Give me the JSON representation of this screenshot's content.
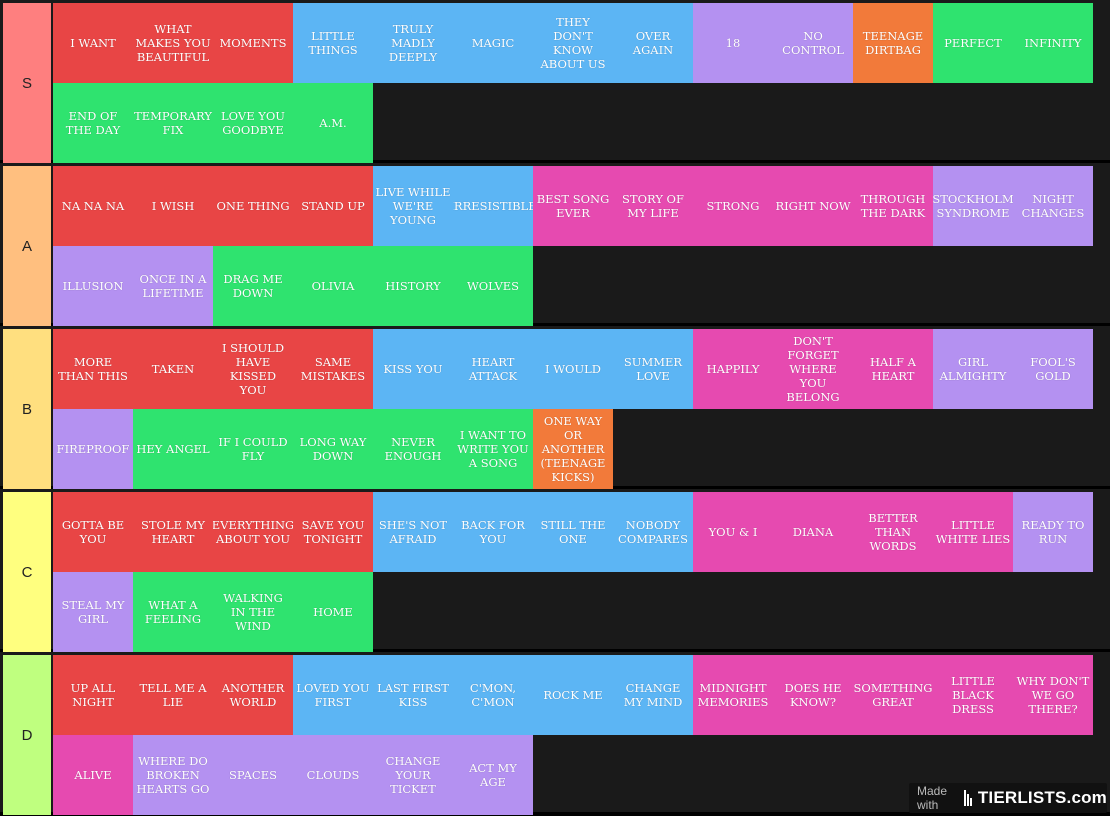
{
  "colors": {
    "red": "#e84545",
    "blue": "#5cb5f4",
    "lavender": "#b491f1",
    "orange": "#f27a3a",
    "green": "#2fe36f",
    "magenta": "#e64ab0",
    "board_bg": "#1a1a1a"
  },
  "tiers": [
    {
      "label": "S",
      "color": "#fe7f7f",
      "items": [
        {
          "text": "I WANT",
          "color": "red"
        },
        {
          "text": "WHAT MAKES YOU BEAUTIFUL",
          "color": "red"
        },
        {
          "text": "MOMENTS",
          "color": "red"
        },
        {
          "text": "LITTLE THINGS",
          "color": "blue"
        },
        {
          "text": "TRULY MADLY DEEPLY",
          "color": "blue"
        },
        {
          "text": "MAGIC",
          "color": "blue"
        },
        {
          "text": "THEY DON'T KNOW ABOUT US",
          "color": "blue"
        },
        {
          "text": "OVER AGAIN",
          "color": "blue"
        },
        {
          "text": "18",
          "color": "lavender"
        },
        {
          "text": "NO CONTROL",
          "color": "lavender"
        },
        {
          "text": "TEENAGE DIRTBAG",
          "color": "orange"
        },
        {
          "text": "PERFECT",
          "color": "green"
        },
        {
          "text": "INFINITY",
          "color": "green"
        },
        {
          "text": "END OF THE DAY",
          "color": "green"
        },
        {
          "text": "TEMPORARY FIX",
          "color": "green"
        },
        {
          "text": "LOVE YOU GOODBYE",
          "color": "green"
        },
        {
          "text": "A.M.",
          "color": "green"
        }
      ]
    },
    {
      "label": "A",
      "color": "#ffbf7f",
      "items": [
        {
          "text": "NA NA NA",
          "color": "red"
        },
        {
          "text": "I WISH",
          "color": "red"
        },
        {
          "text": "ONE THING",
          "color": "red"
        },
        {
          "text": "STAND UP",
          "color": "red"
        },
        {
          "text": "LIVE WHILE WE'RE YOUNG",
          "color": "blue"
        },
        {
          "text": "IRRESISTIBLE",
          "color": "blue"
        },
        {
          "text": "BEST SONG EVER",
          "color": "magenta"
        },
        {
          "text": "STORY OF MY LIFE",
          "color": "magenta"
        },
        {
          "text": "STRONG",
          "color": "magenta"
        },
        {
          "text": "RIGHT NOW",
          "color": "magenta"
        },
        {
          "text": "THROUGH THE DARK",
          "color": "magenta"
        },
        {
          "text": "STOCKHOLM SYNDROME",
          "color": "lavender"
        },
        {
          "text": "NIGHT CHANGES",
          "color": "lavender"
        },
        {
          "text": "ILLUSION",
          "color": "lavender"
        },
        {
          "text": "ONCE IN A LIFETIME",
          "color": "lavender"
        },
        {
          "text": "DRAG ME DOWN",
          "color": "green"
        },
        {
          "text": "OLIVIA",
          "color": "green"
        },
        {
          "text": "HISTORY",
          "color": "green"
        },
        {
          "text": "WOLVES",
          "color": "green"
        }
      ]
    },
    {
      "label": "B",
      "color": "#ffdf7f",
      "items": [
        {
          "text": "MORE THAN THIS",
          "color": "red"
        },
        {
          "text": "TAKEN",
          "color": "red"
        },
        {
          "text": "I SHOULD HAVE KISSED YOU",
          "color": "red"
        },
        {
          "text": "SAME MISTAKES",
          "color": "red"
        },
        {
          "text": "KISS YOU",
          "color": "blue"
        },
        {
          "text": "HEART ATTACK",
          "color": "blue"
        },
        {
          "text": "I WOULD",
          "color": "blue"
        },
        {
          "text": "SUMMER LOVE",
          "color": "blue"
        },
        {
          "text": "HAPPILY",
          "color": "magenta"
        },
        {
          "text": "DON'T FORGET WHERE YOU BELONG",
          "color": "magenta"
        },
        {
          "text": "HALF A HEART",
          "color": "magenta"
        },
        {
          "text": "GIRL ALMIGHTY",
          "color": "lavender"
        },
        {
          "text": "FOOL'S GOLD",
          "color": "lavender"
        },
        {
          "text": "FIREPROOF",
          "color": "lavender"
        },
        {
          "text": "HEY ANGEL",
          "color": "green"
        },
        {
          "text": "IF I COULD FLY",
          "color": "green"
        },
        {
          "text": "LONG WAY DOWN",
          "color": "green"
        },
        {
          "text": "NEVER ENOUGH",
          "color": "green"
        },
        {
          "text": "I WANT TO WRITE YOU A SONG",
          "color": "green"
        },
        {
          "text": "ONE WAY OR ANOTHER (TEENAGE KICKS)",
          "color": "orange"
        }
      ]
    },
    {
      "label": "C",
      "color": "#ffff7f",
      "items": [
        {
          "text": "GOTTA BE YOU",
          "color": "red"
        },
        {
          "text": "STOLE MY HEART",
          "color": "red"
        },
        {
          "text": "EVERYTHING ABOUT YOU",
          "color": "red"
        },
        {
          "text": "SAVE YOU TONIGHT",
          "color": "red"
        },
        {
          "text": "SHE'S NOT AFRAID",
          "color": "blue"
        },
        {
          "text": "BACK FOR YOU",
          "color": "blue"
        },
        {
          "text": "STILL THE ONE",
          "color": "blue"
        },
        {
          "text": "NOBODY COMPARES",
          "color": "blue"
        },
        {
          "text": "YOU & I",
          "color": "magenta"
        },
        {
          "text": "DIANA",
          "color": "magenta"
        },
        {
          "text": "BETTER THAN WORDS",
          "color": "magenta"
        },
        {
          "text": "LITTLE WHITE LIES",
          "color": "magenta"
        },
        {
          "text": "READY TO RUN",
          "color": "lavender"
        },
        {
          "text": "STEAL MY GIRL",
          "color": "lavender"
        },
        {
          "text": "WHAT A FEELING",
          "color": "green"
        },
        {
          "text": "WALKING IN THE WIND",
          "color": "green"
        },
        {
          "text": "HOME",
          "color": "green"
        }
      ]
    },
    {
      "label": "D",
      "color": "#bfff7f",
      "items": [
        {
          "text": "UP ALL NIGHT",
          "color": "red"
        },
        {
          "text": "TELL ME A LIE",
          "color": "red"
        },
        {
          "text": "ANOTHER WORLD",
          "color": "red"
        },
        {
          "text": "LOVED YOU FIRST",
          "color": "blue"
        },
        {
          "text": "LAST FIRST KISS",
          "color": "blue"
        },
        {
          "text": "C'MON, C'MON",
          "color": "blue"
        },
        {
          "text": "ROCK ME",
          "color": "blue"
        },
        {
          "text": "CHANGE MY MIND",
          "color": "blue"
        },
        {
          "text": "MIDNIGHT MEMORIES",
          "color": "magenta"
        },
        {
          "text": "DOES HE KNOW?",
          "color": "magenta"
        },
        {
          "text": "SOMETHING GREAT",
          "color": "magenta"
        },
        {
          "text": "LITTLE BLACK DRESS",
          "color": "magenta"
        },
        {
          "text": "WHY DON'T WE GO THERE?",
          "color": "magenta"
        },
        {
          "text": "ALIVE",
          "color": "magenta"
        },
        {
          "text": "WHERE DO BROKEN HEARTS GO",
          "color": "lavender"
        },
        {
          "text": "SPACES",
          "color": "lavender"
        },
        {
          "text": "CLOUDS",
          "color": "lavender"
        },
        {
          "text": "CHANGE YOUR TICKET",
          "color": "lavender"
        },
        {
          "text": "ACT MY AGE",
          "color": "lavender"
        }
      ]
    }
  ],
  "watermark": {
    "made_with": "Made with",
    "logo": "TIERLISTS.com"
  }
}
